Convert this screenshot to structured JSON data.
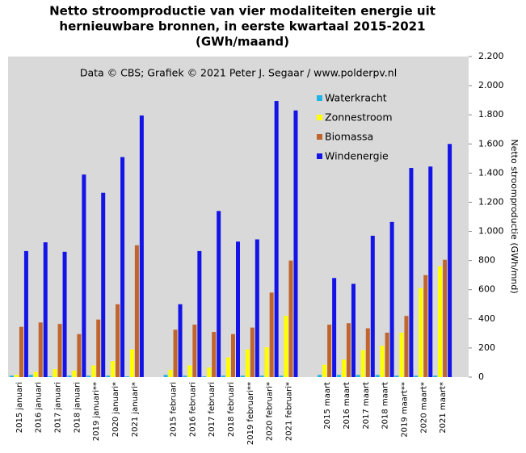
{
  "chart_data": {
    "type": "bar",
    "title": [
      "Netto stroomproductie  van vier modaliteiten  energie uit",
      "hernieuwbare bronnen, in eerste kwartaal 2015-2021",
      "(GWh/maand)"
    ],
    "annotation": "Data © CBS;  Grafiek © 2021 Peter J. Segaar / www.polderpv.nl",
    "y_label": "Netto stroomproductie (GWh/mnd)",
    "categories": [
      "2015 januari",
      "2016 januari",
      "2017 januari",
      "2018 januari",
      "2019 januari**",
      "2020 januari*",
      "2021 januari*",
      null,
      "2015 februari",
      "2016 februari",
      "2017 februari",
      "2018 februari",
      "2019 februari**",
      "2020 februari*",
      "2021 februari*",
      null,
      "2015 maart",
      "2016 maart",
      "2017 maart",
      "2018 maart",
      "2019 maart**",
      "2020 maart*",
      "2021 maart*"
    ],
    "series": [
      {
        "name": "Waterkracht",
        "color": "#1eb4e6",
        "values": [
          10,
          15,
          5,
          10,
          10,
          10,
          5,
          null,
          15,
          10,
          5,
          10,
          10,
          10,
          10,
          null,
          15,
          15,
          15,
          15,
          10,
          10,
          10
        ]
      },
      {
        "name": "Zonnestroom",
        "color": "#ffff00",
        "values": [
          15,
          35,
          55,
          45,
          80,
          110,
          190,
          null,
          50,
          80,
          65,
          135,
          190,
          205,
          420,
          null,
          85,
          120,
          185,
          215,
          305,
          610,
          760
        ]
      },
      {
        "name": "Biomassa",
        "color": "#c0652d",
        "values": [
          345,
          375,
          365,
          295,
          395,
          500,
          905,
          null,
          325,
          360,
          310,
          295,
          340,
          580,
          800,
          null,
          360,
          370,
          335,
          305,
          420,
          700,
          805
        ]
      },
      {
        "name": "Windenergie",
        "color": "#1414e6",
        "values": [
          865,
          925,
          860,
          1390,
          1265,
          1510,
          1795,
          null,
          500,
          865,
          1140,
          930,
          945,
          1895,
          1830,
          null,
          680,
          640,
          970,
          1065,
          1435,
          1445,
          1600
        ]
      }
    ],
    "ylim": [
      0,
      2200
    ],
    "yticks": [
      0,
      200,
      400,
      600,
      800,
      {
        "value": 1000,
        "label": "1.000"
      },
      {
        "value": 1200,
        "label": "1.200"
      },
      {
        "value": 1400,
        "label": "1.400"
      },
      {
        "value": 1600,
        "label": "1.600"
      },
      {
        "value": 1800,
        "label": "1.800"
      },
      {
        "value": 2000,
        "label": "2.000"
      },
      {
        "value": 2200,
        "label": "2.200"
      }
    ],
    "y_axis_side": "right",
    "legend": "upper right"
  }
}
